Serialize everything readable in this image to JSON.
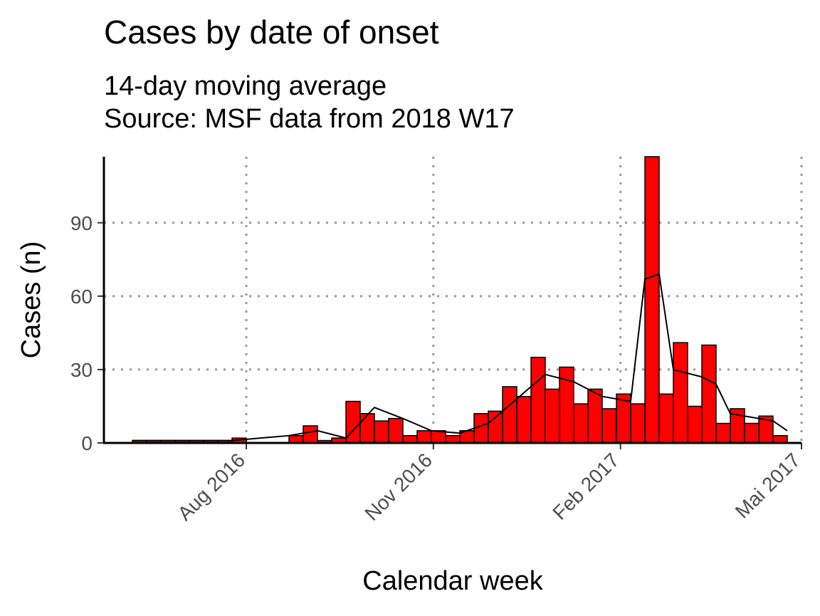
{
  "chart_data": {
    "type": "bar",
    "title": "Cases by date of onset",
    "subtitle_lines": [
      "14-day moving average",
      "Source: MSF data from 2018 W17"
    ],
    "xlabel": "Calendar week",
    "ylabel": "Cases (n)",
    "x_range": [
      "2016-05-23",
      "2017-05-01"
    ],
    "ylim": [
      0,
      117
    ],
    "y_ticks": [
      0,
      30,
      60,
      90
    ],
    "x_ticks": [
      {
        "date": "2016-08-01",
        "label": "Aug 2016"
      },
      {
        "date": "2016-11-01",
        "label": "Nov 2016"
      },
      {
        "date": "2017-02-01",
        "label": "Feb 2017"
      },
      {
        "date": "2017-05-01",
        "label": "Mai 2017"
      }
    ],
    "grid": "dotted",
    "bar_color": "#ff0000",
    "bar_border": "#000000",
    "line_color": "#000000",
    "series": [
      {
        "type": "bar",
        "week_start": [
          "2016-06-06",
          "2016-06-13",
          "2016-06-20",
          "2016-06-27",
          "2016-07-04",
          "2016-07-11",
          "2016-07-18",
          "2016-07-25",
          "2016-08-01",
          "2016-08-08",
          "2016-08-15",
          "2016-08-22",
          "2016-08-29",
          "2016-09-05",
          "2016-09-12",
          "2016-09-19",
          "2016-09-26",
          "2016-10-03",
          "2016-10-10",
          "2016-10-17",
          "2016-10-24",
          "2016-10-31",
          "2016-11-07",
          "2016-11-14",
          "2016-11-21",
          "2016-11-28",
          "2016-12-05",
          "2016-12-12",
          "2016-12-19",
          "2016-12-26",
          "2017-01-02",
          "2017-01-09",
          "2017-01-16",
          "2017-01-23",
          "2017-01-30",
          "2017-02-06",
          "2017-02-13",
          "2017-02-20",
          "2017-02-27",
          "2017-03-06",
          "2017-03-13",
          "2017-03-20",
          "2017-03-27",
          "2017-04-03",
          "2017-04-10",
          "2017-04-17"
        ],
        "values": [
          1,
          1,
          1,
          1,
          1,
          1,
          1,
          2,
          0,
          0,
          0,
          3,
          7,
          1,
          2,
          17,
          12,
          9,
          10,
          3,
          5,
          5,
          3,
          5,
          12,
          13,
          23,
          19,
          35,
          22,
          31,
          16,
          22,
          14,
          20,
          16,
          117,
          20,
          41,
          15,
          40,
          8,
          14,
          8,
          11,
          3
        ]
      },
      {
        "type": "line",
        "name": "14-day moving average",
        "x": [
          "2016-06-06",
          "2016-07-04",
          "2016-07-25",
          "2016-08-08",
          "2016-08-22",
          "2016-09-05",
          "2016-09-19",
          "2016-10-03",
          "2016-10-17",
          "2016-10-31",
          "2016-11-14",
          "2016-11-28",
          "2016-12-12",
          "2016-12-26",
          "2017-01-09",
          "2017-01-23",
          "2017-02-06",
          "2017-02-13",
          "2017-02-20",
          "2017-02-27",
          "2017-03-13",
          "2017-03-20",
          "2017-03-27",
          "2017-04-03",
          "2017-04-17",
          "2017-04-24"
        ],
        "values": [
          1,
          1,
          1,
          2,
          3,
          5,
          2,
          14.5,
          10,
          5,
          4,
          8,
          18,
          28,
          25,
          19,
          17,
          67,
          69,
          30,
          27,
          24,
          12,
          11,
          9,
          5
        ]
      }
    ]
  }
}
